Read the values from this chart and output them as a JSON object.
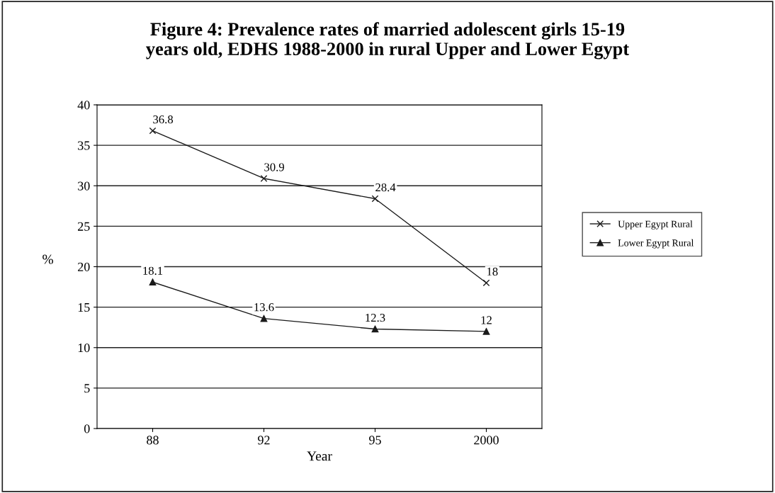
{
  "chart_data": {
    "type": "line",
    "title": "Figure 4: Prevalence rates of married adolescent girls 15-19\nyears old, EDHS 1988-2000 in rural Upper and Lower Egypt",
    "xlabel": "Year",
    "ylabel": "%",
    "categories": [
      "88",
      "92",
      "95",
      "2000"
    ],
    "series": [
      {
        "name": "Upper Egypt Rural",
        "color": "#1a1a1a",
        "marker": "cross",
        "values": [
          36.8,
          30.9,
          28.4,
          18
        ]
      },
      {
        "name": "Lower Egypt Rural",
        "color": "#1a1a1a",
        "marker": "triangle",
        "values": [
          18.1,
          13.6,
          12.3,
          12
        ]
      }
    ],
    "ylim": [
      0,
      40
    ],
    "yticks": [
      0,
      5,
      10,
      15,
      20,
      25,
      30,
      35,
      40
    ],
    "grid": "y",
    "legend": "right",
    "data_labels": true,
    "line_style": "solid"
  }
}
